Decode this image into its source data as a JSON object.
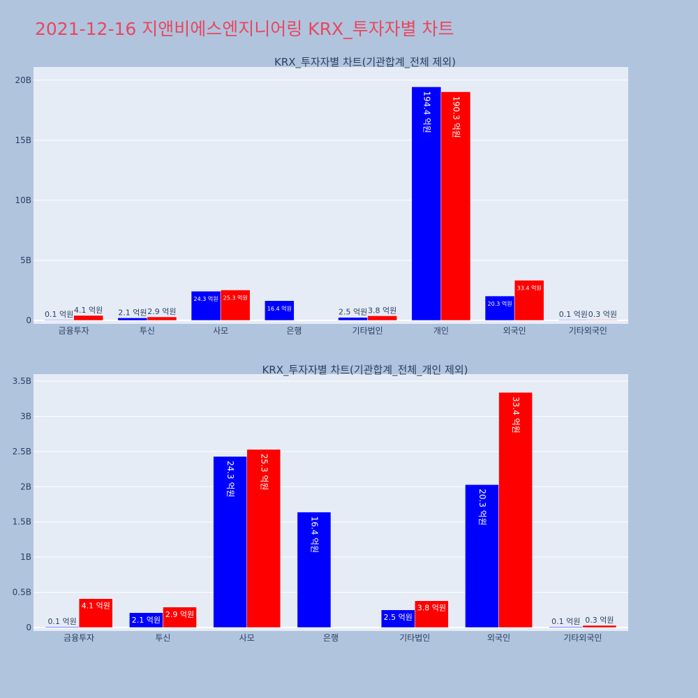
{
  "page_title": "2021-12-16 지앤비에스엔지니어링 KRX_투자자별 차트",
  "colors": {
    "background": "#b0c4de",
    "plot_bg": "#e5ecf6",
    "title": "#e8475f",
    "text": "#2a3f5f",
    "series_a": "#0000ff",
    "series_b": "#ff0000"
  },
  "chart_data": [
    {
      "type": "bar",
      "title": "KRX_투자자별 차트(기관합계_전체 제외)",
      "categories": [
        "금융투자",
        "투신",
        "사모",
        "은행",
        "기타법인",
        "개인",
        "외국인",
        "기타외국인"
      ],
      "ylim": [
        0,
        20800000000
      ],
      "yticks": [
        0,
        5000000000,
        10000000000,
        15000000000,
        20000000000
      ],
      "yticklabels": [
        "0",
        "5B",
        "10B",
        "15B",
        "20B"
      ],
      "grid": true,
      "series": [
        {
          "color": "#0000ff",
          "values": [
            10000000,
            210000000,
            2430000000,
            1640000000,
            250000000,
            19440000000,
            2030000000,
            10000000
          ],
          "labels": [
            "0.1 억원",
            "2.1 억원",
            "24.3 억원",
            "16.4 억원",
            "2.5 억원",
            "194.4 억원",
            "20.3 억원",
            "0.1 억원"
          ]
        },
        {
          "color": "#ff0000",
          "values": [
            410000000,
            290000000,
            2530000000,
            null,
            380000000,
            19030000000,
            3340000000,
            30000000
          ],
          "labels": [
            "4.1 억원",
            "2.9 억원",
            "25.3 억원",
            "",
            "3.8 억원",
            "190.3 억원",
            "33.4 억원",
            "0.3 억원"
          ]
        }
      ]
    },
    {
      "type": "bar",
      "title": "KRX_투자자별 차트(기관합계_전체_개인 제외)",
      "categories": [
        "금융투자",
        "투신",
        "사모",
        "은행",
        "기타법인",
        "외국인",
        "기타외국인"
      ],
      "ylim": [
        0,
        3550000000
      ],
      "yticks": [
        0,
        500000000,
        1000000000,
        1500000000,
        2000000000,
        2500000000,
        3000000000,
        3500000000
      ],
      "yticklabels": [
        "0",
        "0.5B",
        "1B",
        "1.5B",
        "2B",
        "2.5B",
        "3B",
        "3.5B"
      ],
      "grid": true,
      "series": [
        {
          "color": "#0000ff",
          "values": [
            10000000,
            210000000,
            2430000000,
            1640000000,
            250000000,
            2030000000,
            10000000
          ],
          "labels": [
            "0.1 억원",
            "2.1 억원",
            "24.3 억원",
            "16.4 억원",
            "2.5 억원",
            "20.3 억원",
            "0.1 억원"
          ]
        },
        {
          "color": "#ff0000",
          "values": [
            410000000,
            290000000,
            2530000000,
            null,
            380000000,
            3340000000,
            30000000
          ],
          "labels": [
            "4.1 억원",
            "2.9 억원",
            "25.3 억원",
            "",
            "3.8 억원",
            "33.4 억원",
            "0.3 억원"
          ]
        }
      ]
    }
  ]
}
